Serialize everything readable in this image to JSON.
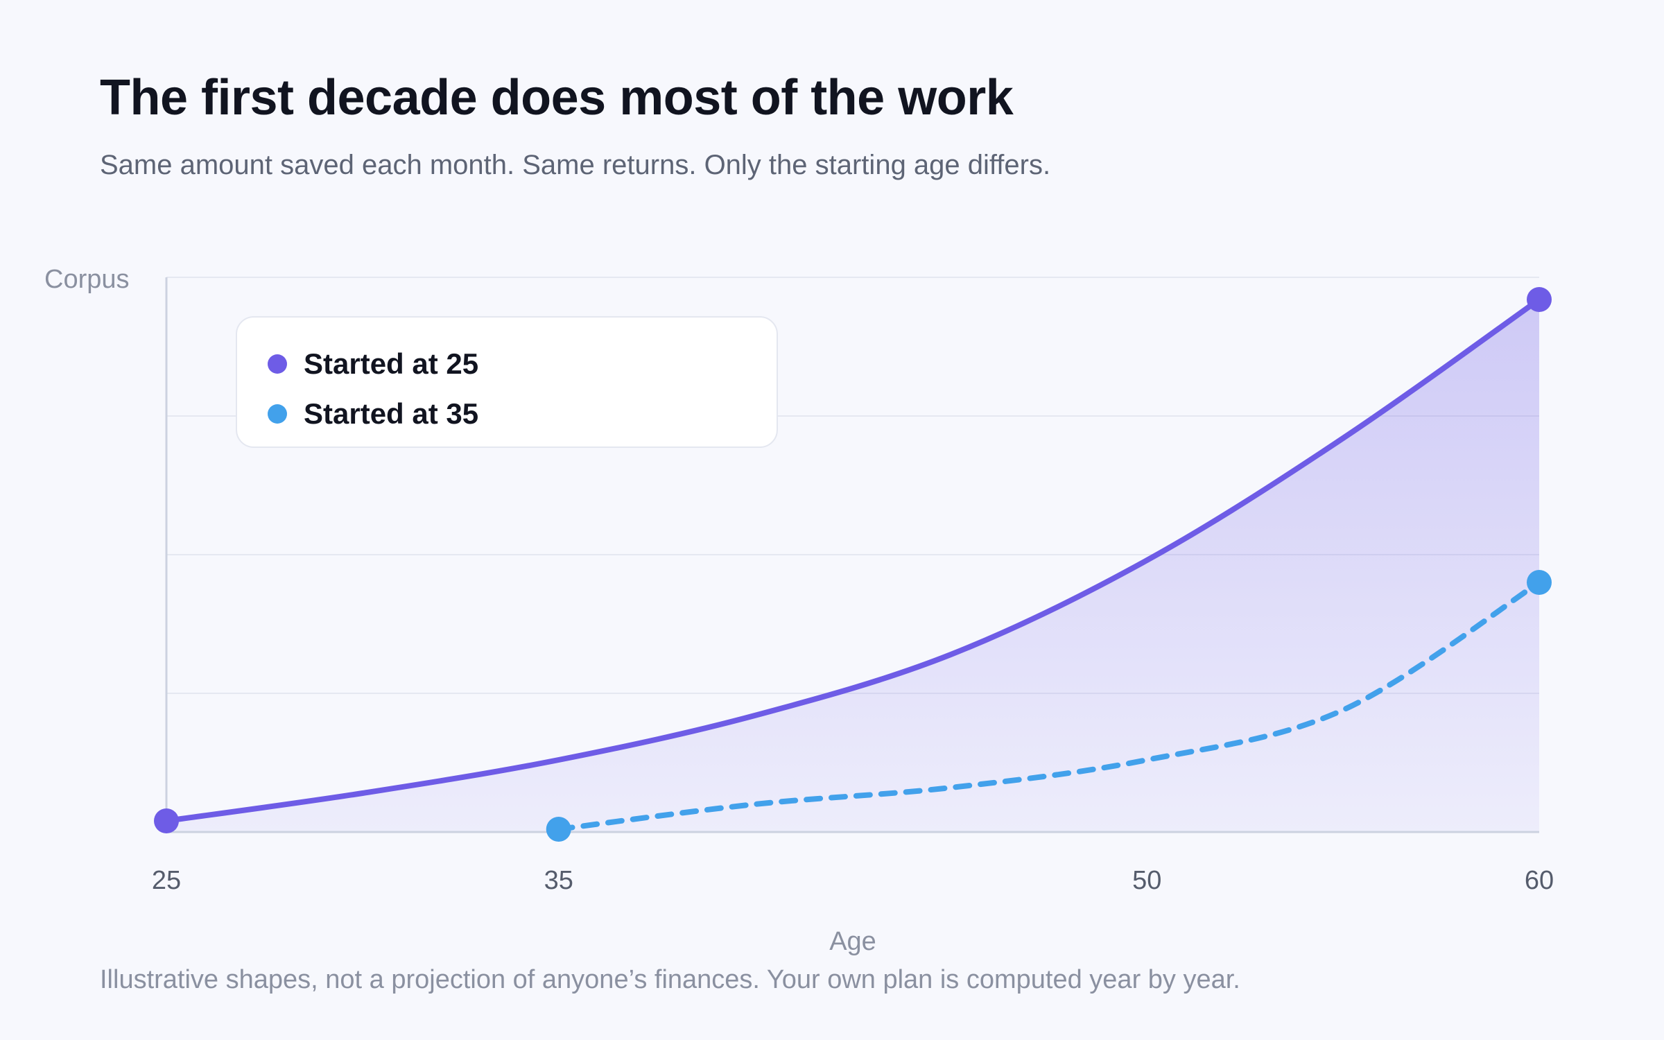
{
  "title": "The first decade does most of the work",
  "subtitle": "Same amount saved each month. Same returns. Only the starting age differs.",
  "footnote": "Illustrative shapes, not a projection of anyone’s finances. Your own plan is computed year by year.",
  "chart_data": {
    "type": "area",
    "xlabel": "Age",
    "ylabel": "Corpus",
    "x_ticks": [
      25,
      35,
      50,
      60
    ],
    "xlim": [
      25,
      60
    ],
    "ylim": [
      0,
      100
    ],
    "y_tick_labels_shown": false,
    "grid": "horizontal",
    "legend_position": "top-left",
    "series": [
      {
        "name": "Started at 25",
        "color": "#6e5ce6",
        "line_style": "solid",
        "filled": true,
        "points": [
          {
            "x": 25,
            "y": 2
          },
          {
            "x": 30,
            "y": 7
          },
          {
            "x": 35,
            "y": 13
          },
          {
            "x": 40,
            "y": 21
          },
          {
            "x": 45,
            "y": 32
          },
          {
            "x": 50,
            "y": 49
          },
          {
            "x": 55,
            "y": 71
          },
          {
            "x": 60,
            "y": 96
          }
        ]
      },
      {
        "name": "Started at 35",
        "color": "#42a1eb",
        "line_style": "dashed",
        "filled": false,
        "points": [
          {
            "x": 35,
            "y": 0.5
          },
          {
            "x": 40,
            "y": 5
          },
          {
            "x": 45,
            "y": 8
          },
          {
            "x": 50,
            "y": 13
          },
          {
            "x": 55,
            "y": 22
          },
          {
            "x": 60,
            "y": 45
          }
        ]
      }
    ]
  }
}
